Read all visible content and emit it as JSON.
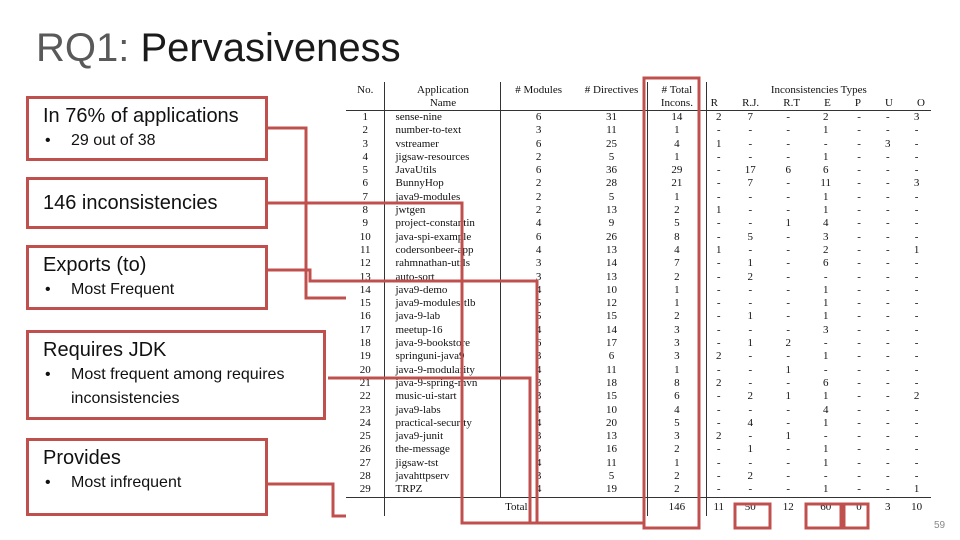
{
  "slide": {
    "title_prefix": "RQ1: ",
    "title_main": "Pervasiveness",
    "page_number": "59"
  },
  "boxes": {
    "applications": {
      "heading": "In 76% of applications",
      "bullet": "29 out of 38"
    },
    "inconsistencies": {
      "heading": "146 inconsistencies"
    },
    "exports": {
      "heading": "Exports (to)",
      "bullet": "Most Frequent"
    },
    "requires": {
      "heading": "Requires JDK",
      "bullet": "Most frequent among requires inconsistencies"
    },
    "provides": {
      "heading": "Provides",
      "bullet": "Most infrequent"
    }
  },
  "table": {
    "headers": {
      "no": "No.",
      "app_line1": "Application",
      "app_line2": "Name",
      "modules": "# Modules",
      "directives": "# Directives",
      "total_line1": "# Total",
      "total_line2": "Incons.",
      "types_group": "Inconsistencies Types",
      "types": [
        "R",
        "R.J.",
        "R.T",
        "E",
        "P",
        "U",
        "O"
      ]
    },
    "rows": [
      {
        "no": "1",
        "name": "sense-nine",
        "modules": "6",
        "directives": "31",
        "total": "14",
        "r": "2",
        "rj": "7",
        "rt": "-",
        "e": "2",
        "p": "-",
        "u": "-",
        "o": "3"
      },
      {
        "no": "2",
        "name": "number-to-text",
        "modules": "3",
        "directives": "11",
        "total": "1",
        "r": "-",
        "rj": "-",
        "rt": "-",
        "e": "1",
        "p": "-",
        "u": "-",
        "o": "-"
      },
      {
        "no": "3",
        "name": "vstreamer",
        "modules": "6",
        "directives": "25",
        "total": "4",
        "r": "1",
        "rj": "-",
        "rt": "-",
        "e": "-",
        "p": "-",
        "u": "3",
        "o": "-"
      },
      {
        "no": "4",
        "name": "jigsaw-resources",
        "modules": "2",
        "directives": "5",
        "total": "1",
        "r": "-",
        "rj": "-",
        "rt": "-",
        "e": "1",
        "p": "-",
        "u": "-",
        "o": "-"
      },
      {
        "no": "5",
        "name": "JavaUtils",
        "modules": "6",
        "directives": "36",
        "total": "29",
        "r": "-",
        "rj": "17",
        "rt": "6",
        "e": "6",
        "p": "-",
        "u": "-",
        "o": "-"
      },
      {
        "no": "6",
        "name": "BunnyHop",
        "modules": "2",
        "directives": "28",
        "total": "21",
        "r": "-",
        "rj": "7",
        "rt": "-",
        "e": "11",
        "p": "-",
        "u": "-",
        "o": "3"
      },
      {
        "no": "7",
        "name": "java9-modules",
        "modules": "2",
        "directives": "5",
        "total": "1",
        "r": "-",
        "rj": "-",
        "rt": "-",
        "e": "1",
        "p": "-",
        "u": "-",
        "o": "-"
      },
      {
        "no": "8",
        "name": "jwtgen",
        "modules": "2",
        "directives": "13",
        "total": "2",
        "r": "1",
        "rj": "-",
        "rt": "-",
        "e": "1",
        "p": "-",
        "u": "-",
        "o": "-"
      },
      {
        "no": "9",
        "name": "project-constantin",
        "modules": "4",
        "directives": "9",
        "total": "5",
        "r": "-",
        "rj": "-",
        "rt": "1",
        "e": "4",
        "p": "-",
        "u": "-",
        "o": "-"
      },
      {
        "no": "10",
        "name": "java-spi-example",
        "modules": "6",
        "directives": "26",
        "total": "8",
        "r": "-",
        "rj": "5",
        "rt": "-",
        "e": "3",
        "p": "-",
        "u": "-",
        "o": "-"
      },
      {
        "no": "11",
        "name": "codersonbeer-app",
        "modules": "4",
        "directives": "13",
        "total": "4",
        "r": "1",
        "rj": "-",
        "rt": "-",
        "e": "2",
        "p": "-",
        "u": "-",
        "o": "1"
      },
      {
        "no": "12",
        "name": "rahmnathan-utils",
        "modules": "3",
        "directives": "14",
        "total": "7",
        "r": "-",
        "rj": "1",
        "rt": "-",
        "e": "6",
        "p": "-",
        "u": "-",
        "o": "-"
      },
      {
        "no": "13",
        "name": "auto-sort",
        "modules": "3",
        "directives": "13",
        "total": "2",
        "r": "-",
        "rj": "2",
        "rt": "-",
        "e": "-",
        "p": "-",
        "u": "-",
        "o": "-"
      },
      {
        "no": "14",
        "name": "java9-demo",
        "modules": "4",
        "directives": "10",
        "total": "1",
        "r": "-",
        "rj": "-",
        "rt": "-",
        "e": "1",
        "p": "-",
        "u": "-",
        "o": "-"
      },
      {
        "no": "15",
        "name": "java9-modules-tlb",
        "modules": "5",
        "directives": "12",
        "total": "1",
        "r": "-",
        "rj": "-",
        "rt": "-",
        "e": "1",
        "p": "-",
        "u": "-",
        "o": "-"
      },
      {
        "no": "16",
        "name": "java-9-lab",
        "modules": "5",
        "directives": "15",
        "total": "2",
        "r": "-",
        "rj": "1",
        "rt": "-",
        "e": "1",
        "p": "-",
        "u": "-",
        "o": "-"
      },
      {
        "no": "17",
        "name": "meetup-16",
        "modules": "4",
        "directives": "14",
        "total": "3",
        "r": "-",
        "rj": "-",
        "rt": "-",
        "e": "3",
        "p": "-",
        "u": "-",
        "o": "-"
      },
      {
        "no": "18",
        "name": "java-9-bookstore",
        "modules": "6",
        "directives": "17",
        "total": "3",
        "r": "-",
        "rj": "1",
        "rt": "2",
        "e": "-",
        "p": "-",
        "u": "-",
        "o": "-"
      },
      {
        "no": "19",
        "name": "springuni-java9",
        "modules": "3",
        "directives": "6",
        "total": "3",
        "r": "2",
        "rj": "-",
        "rt": "-",
        "e": "1",
        "p": "-",
        "u": "-",
        "o": "-"
      },
      {
        "no": "20",
        "name": "java-9-modularity",
        "modules": "4",
        "directives": "11",
        "total": "1",
        "r": "-",
        "rj": "-",
        "rt": "1",
        "e": "-",
        "p": "-",
        "u": "-",
        "o": "-"
      },
      {
        "no": "21",
        "name": "java-9-spring-mvn",
        "modules": "3",
        "directives": "18",
        "total": "8",
        "r": "2",
        "rj": "-",
        "rt": "-",
        "e": "6",
        "p": "-",
        "u": "-",
        "o": "-"
      },
      {
        "no": "22",
        "name": "music-ui-start",
        "modules": "3",
        "directives": "15",
        "total": "6",
        "r": "-",
        "rj": "2",
        "rt": "1",
        "e": "1",
        "p": "-",
        "u": "-",
        "o": "2"
      },
      {
        "no": "23",
        "name": "java9-labs",
        "modules": "4",
        "directives": "10",
        "total": "4",
        "r": "-",
        "rj": "-",
        "rt": "-",
        "e": "4",
        "p": "-",
        "u": "-",
        "o": "-"
      },
      {
        "no": "24",
        "name": "practical-security",
        "modules": "4",
        "directives": "20",
        "total": "5",
        "r": "-",
        "rj": "4",
        "rt": "-",
        "e": "1",
        "p": "-",
        "u": "-",
        "o": "-"
      },
      {
        "no": "25",
        "name": "java9-junit",
        "modules": "3",
        "directives": "13",
        "total": "3",
        "r": "2",
        "rj": "-",
        "rt": "1",
        "e": "-",
        "p": "-",
        "u": "-",
        "o": "-"
      },
      {
        "no": "26",
        "name": "the-message",
        "modules": "3",
        "directives": "16",
        "total": "2",
        "r": "-",
        "rj": "1",
        "rt": "-",
        "e": "1",
        "p": "-",
        "u": "-",
        "o": "-"
      },
      {
        "no": "27",
        "name": "jigsaw-tst",
        "modules": "4",
        "directives": "11",
        "total": "1",
        "r": "-",
        "rj": "-",
        "rt": "-",
        "e": "1",
        "p": "-",
        "u": "-",
        "o": "-"
      },
      {
        "no": "28",
        "name": "javahttpserv",
        "modules": "3",
        "directives": "5",
        "total": "2",
        "r": "-",
        "rj": "2",
        "rt": "-",
        "e": "-",
        "p": "-",
        "u": "-",
        "o": "-"
      },
      {
        "no": "29",
        "name": "TRPZ",
        "modules": "4",
        "directives": "19",
        "total": "2",
        "r": "-",
        "rj": "-",
        "rt": "-",
        "e": "1",
        "p": "-",
        "u": "-",
        "o": "1"
      }
    ],
    "total_row": {
      "label": "Total",
      "total": "146",
      "r": "11",
      "rj": "50",
      "rt": "12",
      "e": "60",
      "p": "0",
      "u": "3",
      "o": "10"
    }
  },
  "colors": {
    "highlight": "#c0504d",
    "title_prefix": "#595959",
    "text": "#111111"
  }
}
